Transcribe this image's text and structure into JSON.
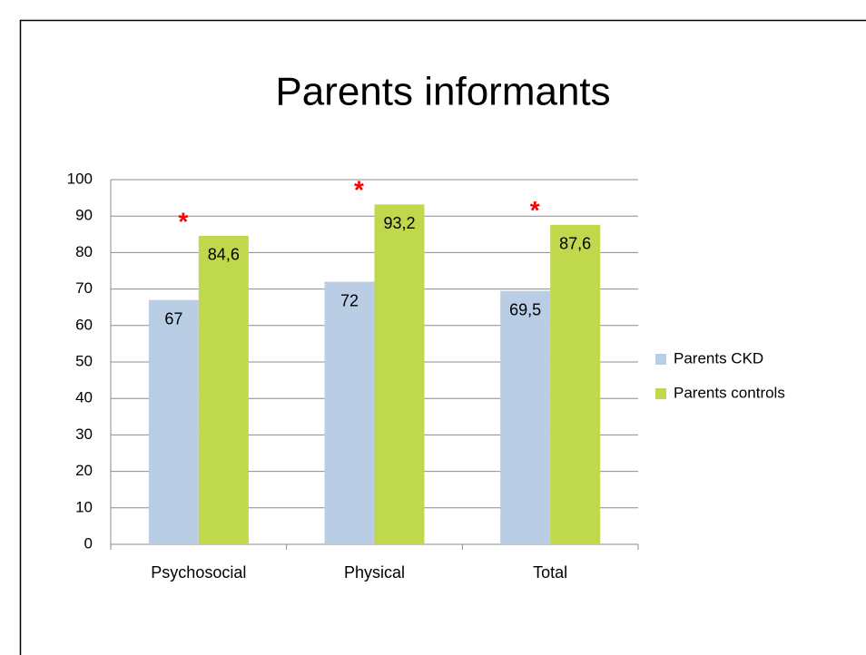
{
  "chart_data": {
    "type": "bar",
    "title": "Parents informants",
    "categories": [
      "Psychosocial",
      "Physical",
      "Total"
    ],
    "series": [
      {
        "name": "Parents CKD",
        "color": "#b9cde5",
        "values": [
          67,
          72,
          69.5
        ],
        "value_labels": [
          "67",
          "72",
          "69,5"
        ]
      },
      {
        "name": "Parents controls",
        "color": "#c0d84c",
        "values": [
          84.6,
          93.2,
          87.6
        ],
        "value_labels": [
          "84,6",
          "93,2",
          "87,6"
        ]
      }
    ],
    "annotations": [
      "*",
      "*",
      "*"
    ],
    "annotation_color": "#ff0000",
    "ylim": [
      0,
      100
    ],
    "yticks": [
      0,
      10,
      20,
      30,
      40,
      50,
      60,
      70,
      80,
      90,
      100
    ],
    "grid": true,
    "legend": "right"
  }
}
